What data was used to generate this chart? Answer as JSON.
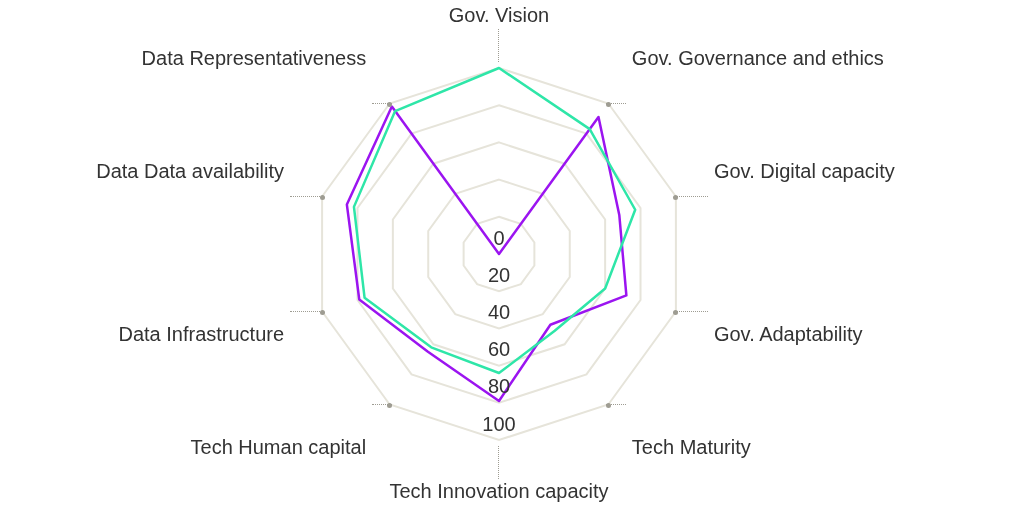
{
  "chart_data": {
    "type": "radar",
    "categories": [
      "Gov. Vision",
      "Gov. Governance and ethics",
      "Gov. Digital capacity",
      "Gov. Adaptability",
      "Tech Maturity",
      "Tech Innovation capacity",
      "Tech Human capital",
      "Data Infrastructure",
      "Data Data availability",
      "Data Representativeness"
    ],
    "series": [
      {
        "color": "#2ee6a8",
        "values": [
          100,
          83,
          77,
          60,
          51,
          64,
          62,
          76,
          82,
          95
        ]
      },
      {
        "color": "#9b14f0",
        "values": [
          0,
          91,
          68,
          72,
          47,
          79,
          65,
          79,
          86,
          98
        ]
      }
    ],
    "ylim": [
      0,
      100
    ],
    "yticks": [
      0,
      20,
      40,
      60,
      80,
      100
    ],
    "grid": true,
    "marker": "none"
  }
}
